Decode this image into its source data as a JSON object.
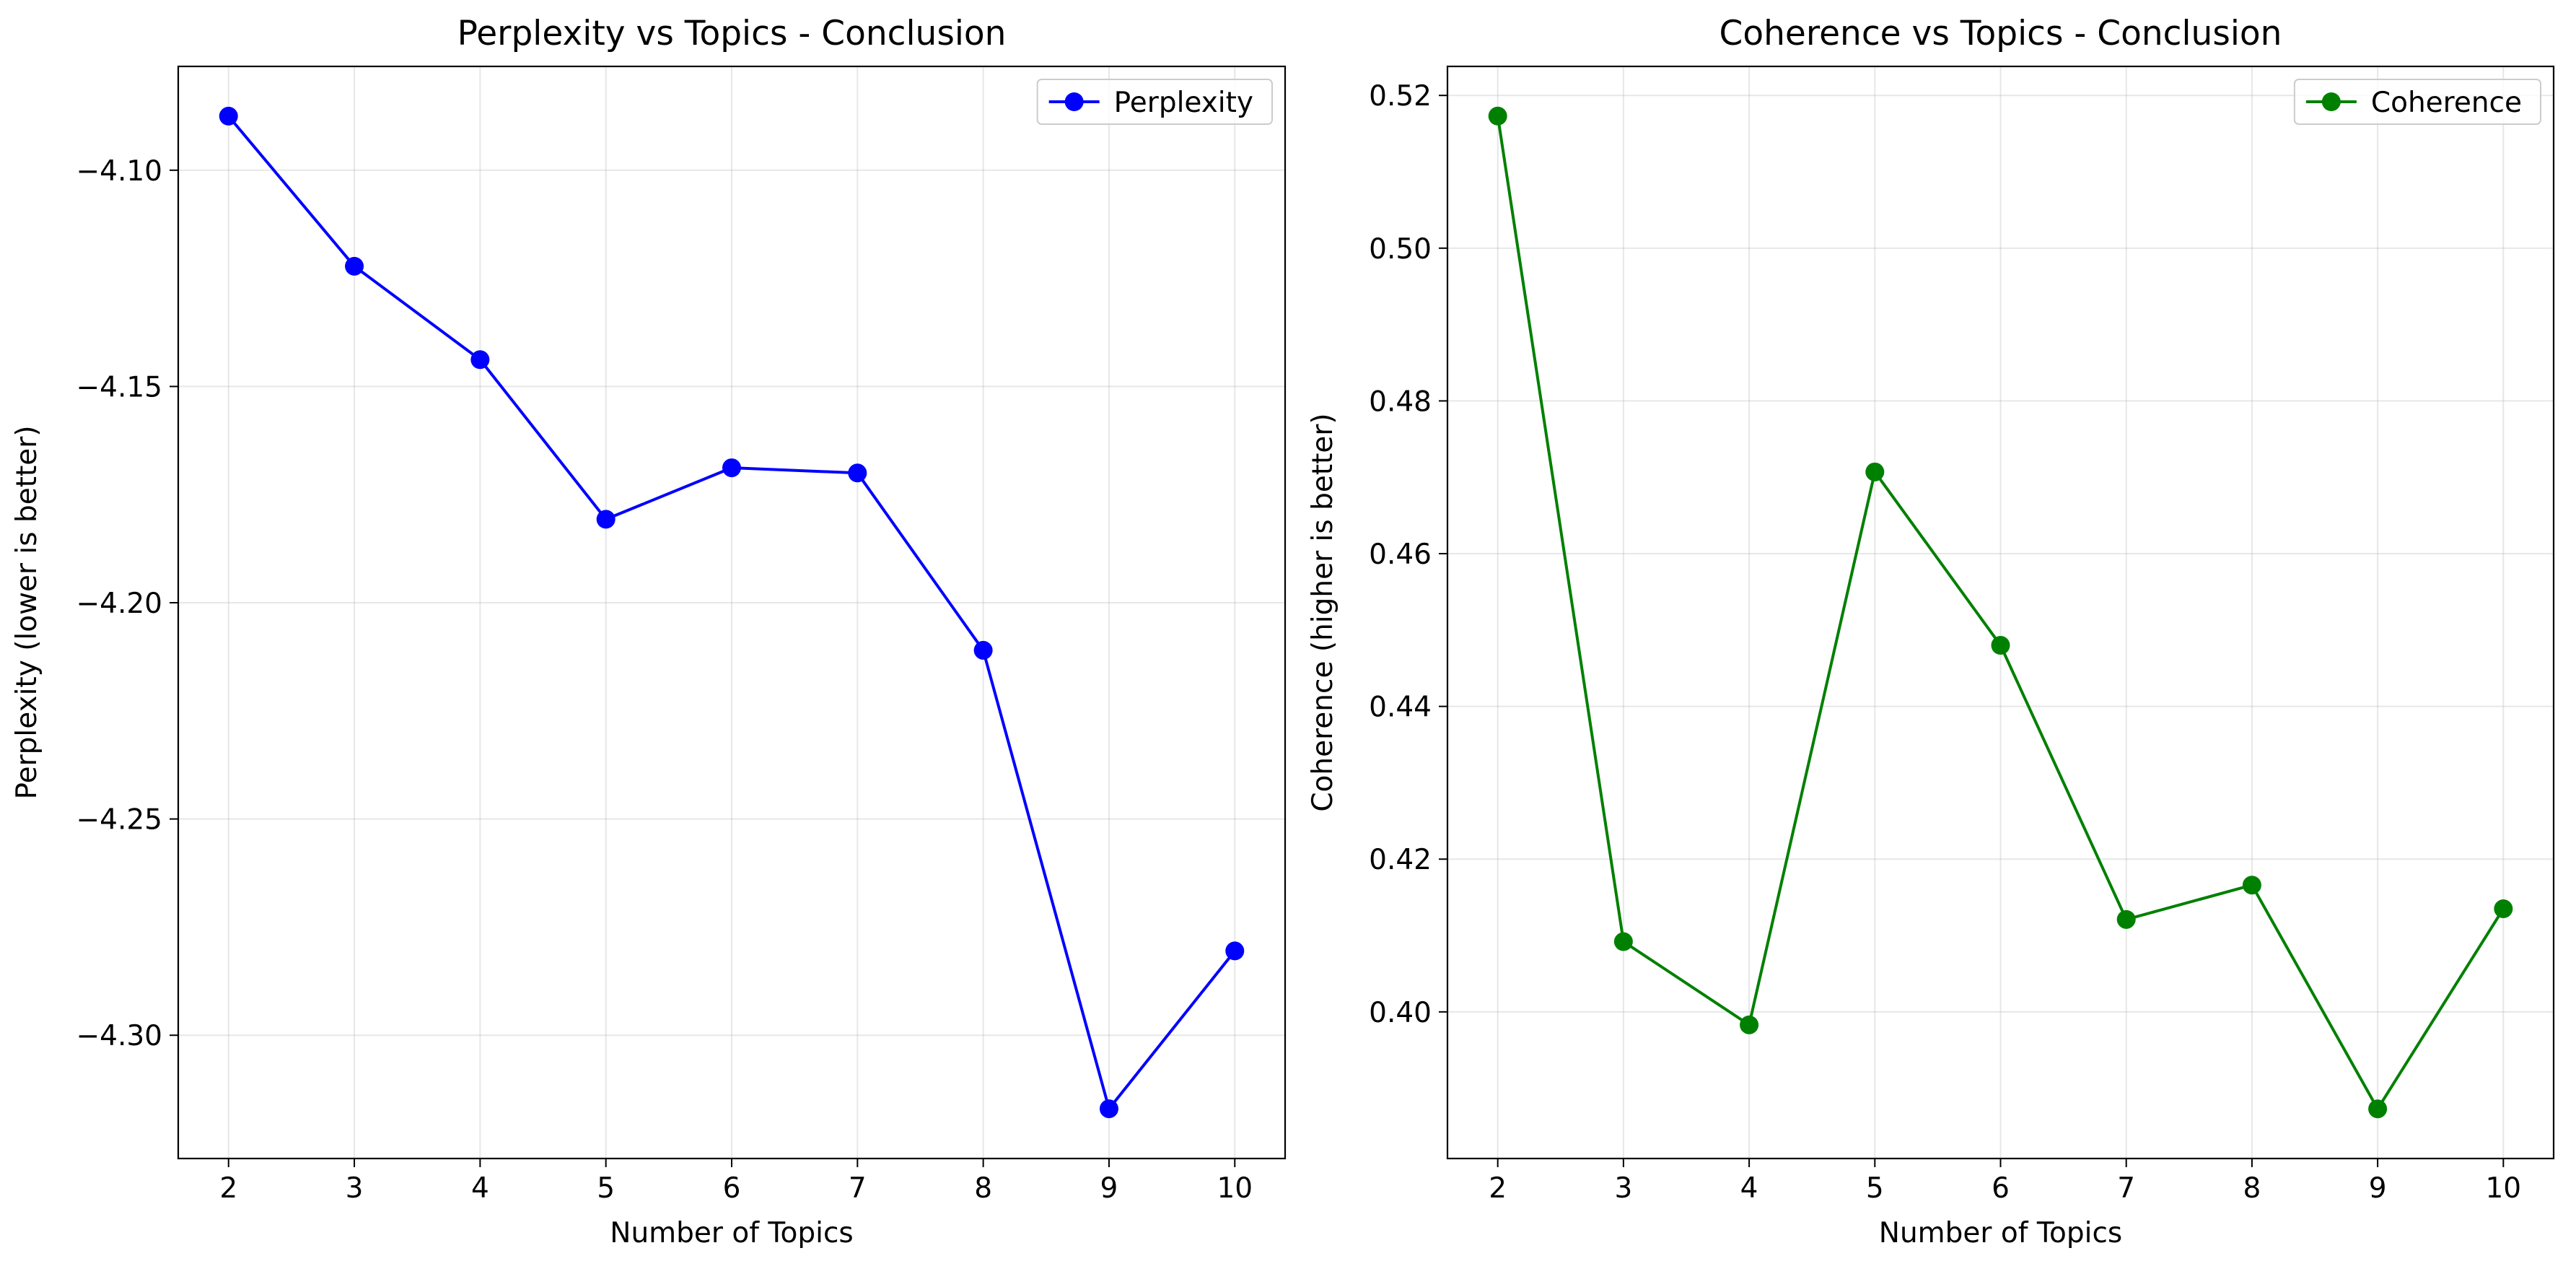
{
  "chart_data": [
    {
      "type": "line",
      "title": "Perplexity vs Topics - Conclusion",
      "xlabel": "Number of Topics",
      "ylabel": "Perplexity (lower is better)",
      "x": [
        2,
        3,
        4,
        5,
        6,
        7,
        8,
        9,
        10
      ],
      "series": [
        {
          "name": "Perplexity",
          "color": "#0000ff",
          "values": [
            -4.0875,
            -4.1222,
            -4.1438,
            -4.1807,
            -4.1688,
            -4.17,
            -4.211,
            -4.317,
            -4.2805
          ]
        }
      ],
      "xlim": [
        1.6,
        10.4
      ],
      "ylim": [
        -4.3285,
        -4.076
      ],
      "xticks": [
        2,
        3,
        4,
        5,
        6,
        7,
        8,
        9,
        10
      ],
      "yticks": [
        -4.1,
        -4.15,
        -4.2,
        -4.25,
        -4.3
      ],
      "ytick_labels": [
        "−4.10",
        "−4.15",
        "−4.20",
        "−4.25",
        "−4.30"
      ],
      "grid": true,
      "legend_position": "upper right"
    },
    {
      "type": "line",
      "title": "Coherence vs Topics - Conclusion",
      "xlabel": "Number of Topics",
      "ylabel": "Coherence (higher is better)",
      "x": [
        2,
        3,
        4,
        5,
        6,
        7,
        8,
        9,
        10
      ],
      "series": [
        {
          "name": "Coherence",
          "color": "#008000",
          "values": [
            0.5173,
            0.4092,
            0.3983,
            0.4707,
            0.448,
            0.4121,
            0.4166,
            0.3873,
            0.4135
          ]
        }
      ],
      "xlim": [
        1.6,
        10.4
      ],
      "ylim": [
        0.3808,
        0.5238
      ],
      "xticks": [
        2,
        3,
        4,
        5,
        6,
        7,
        8,
        9,
        10
      ],
      "yticks": [
        0.4,
        0.42,
        0.44,
        0.46,
        0.48,
        0.5,
        0.52
      ],
      "ytick_labels": [
        "0.40",
        "0.42",
        "0.44",
        "0.46",
        "0.48",
        "0.50",
        "0.52"
      ],
      "grid": true,
      "legend_position": "upper right"
    }
  ]
}
